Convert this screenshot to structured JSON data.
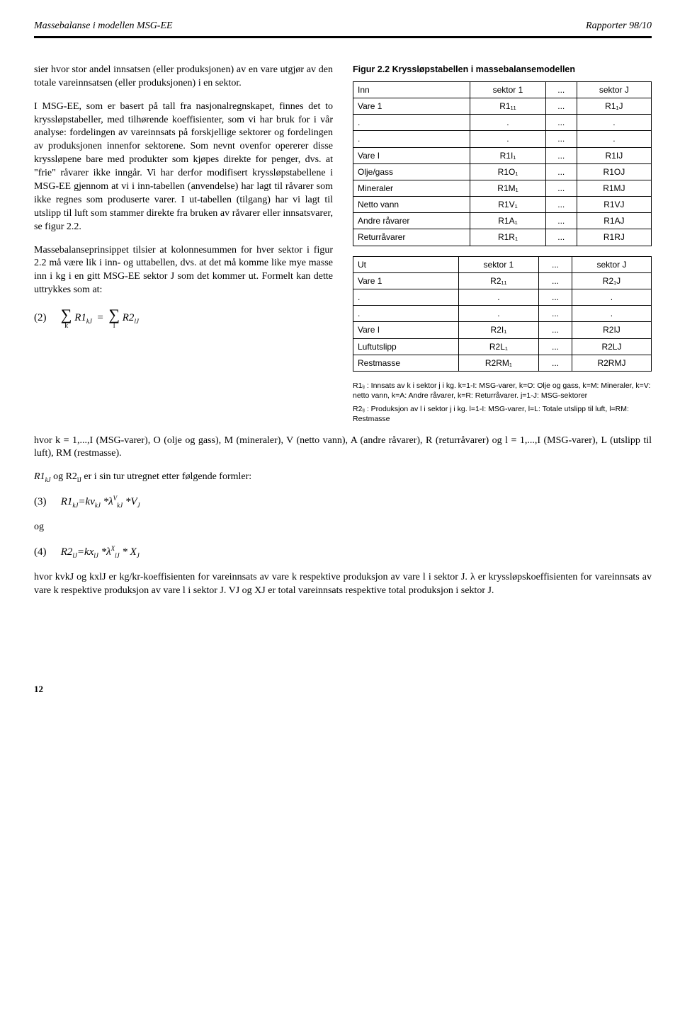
{
  "header": {
    "left": "Massebalanse i modellen MSG-EE",
    "right": "Rapporter 98/10"
  },
  "left": {
    "p1": "sier hvor stor andel innsatsen (eller produksjonen) av en vare utgjør av den totale vareinnsatsen (eller produksjonen) i en sektor.",
    "p2": "I MSG-EE, som er basert på tall fra nasjonalregnskapet, finnes det to kryssløpstabeller, med tilhørende koeffisienter, som vi har bruk for i vår analyse: fordelingen av vareinnsats på forskjellige sektorer og fordelingen av produksjonen innenfor sektorene. Som nevnt ovenfor opererer disse kryssløpene bare med produkter som kjøpes direkte for penger, dvs. at \"frie\" råvarer ikke inngår. Vi har derfor modifisert kryssløpstabellene i MSG-EE gjennom at vi i inn-tabellen (anvendelse) har lagt til råvarer som ikke regnes som produserte varer. I ut-tabellen (tilgang) har vi lagt til utslipp til luft som stammer direkte fra bruken av råvarer eller innsatsvarer, se figur 2.2.",
    "p3": "Massebalanseprinsippet tilsier at kolonnesummen for hver sektor i figur 2.2 må være lik i inn- og uttabellen, dvs. at det må komme like mye masse inn i kg i en gitt MSG-EE sektor J som det kommer ut. Formelt kan dette uttrykkes som at:",
    "eq2": {
      "num": "(2)",
      "lhs_sym": "R1",
      "lhs_sub": "kJ",
      "rhs_sym": "R2",
      "rhs_sub": "lJ",
      "sum_under_left": "k",
      "sum_under_right": "l"
    },
    "p4": "hvor k = 1,...,I (MSG-varer), O (olje og gass), M (mineraler), V (netto vann), A (andre råvarer), R (returråvarer) og l = 1,...,I (MSG-varer), L (utslipp til luft), RM (restmasse).",
    "p5_pre": "R1",
    "p5_sub1": "kJ",
    "p5_mid": " og R2",
    "p5_sub2": "lJ",
    "p5_post": " er i sin tur utregnet etter følgende formler:",
    "eq3": {
      "num": "(3)",
      "text_pre": "R1",
      "sub1": "kJ",
      "eq": "=kv",
      "sub2": "kJ",
      "star1": " *λ",
      "sup": "V",
      "sub3": "kJ",
      "star2": " *V",
      "sub4": "J"
    },
    "og": "og",
    "eq4": {
      "num": "(4)",
      "text_pre": "R2",
      "sub1": "lJ",
      "eq": "=kx",
      "sub2": "lJ",
      "star1": " *λ",
      "sup": "X",
      "sub3": "lJ",
      "star2": " * X",
      "sub4": "J"
    },
    "p6": "hvor kvkJ og kxlJ er kg/kr-koeffisienten for vareinnsats av vare k respektive produksjon av vare l i sektor J. λ er kryssløpskoeffisienten for vareinnsats av vare k respektive produksjon av vare l i sektor J. VJ og XJ er total vareinnsats respektive total produksjon i sektor J."
  },
  "figure": {
    "title": "Figur 2.2 Kryssløpstabellen i massebalansemodellen",
    "table1": {
      "head": [
        "Inn",
        "sektor 1",
        "...",
        "sektor J"
      ],
      "rows": [
        [
          "Vare 1",
          "R1₁₁",
          "...",
          "R1₁J"
        ],
        [
          ".",
          ".",
          "...",
          "."
        ],
        [
          ".",
          ".",
          "...",
          "."
        ],
        [
          "Vare I",
          "R1I₁",
          "...",
          "R1IJ"
        ],
        [
          "Olje/gass",
          "R1O₁",
          "...",
          "R1OJ"
        ],
        [
          "Mineraler",
          "R1M₁",
          "...",
          "R1MJ"
        ],
        [
          "Netto vann",
          "R1V₁",
          "...",
          "R1VJ"
        ],
        [
          "Andre råvarer",
          "R1A₁",
          "...",
          "R1AJ"
        ],
        [
          "Returråvarer",
          "R1R₁",
          "...",
          "R1RJ"
        ]
      ]
    },
    "table2": {
      "head": [
        "Ut",
        "sektor 1",
        "...",
        "sektor J"
      ],
      "rows": [
        [
          "Vare 1",
          "R2₁₁",
          "...",
          "R2₁J"
        ],
        [
          ".",
          ".",
          "...",
          "."
        ],
        [
          ".",
          ".",
          "...",
          "."
        ],
        [
          "Vare I",
          "R2I₁",
          "...",
          "R2IJ"
        ],
        [
          "Luftutslipp",
          "R2L₁",
          "...",
          "R2LJ"
        ],
        [
          "Restmasse",
          "R2RM₁",
          "...",
          "R2RMJ"
        ]
      ]
    },
    "caption1": "R1ᵢⱼ : Innsats av k i sektor j i kg. k=1-I: MSG-varer, k=O: Olje og gass, k=M: Mineraler, k=V: netto vann, k=A: Andre råvarer, k=R: Returråvarer. j=1-J: MSG-sektorer",
    "caption2": "R2ᵢⱼ : Produksjon av l i sektor j i kg. l=1-I: MSG-varer, l=L: Totale utslipp til luft, l=RM: Restmasse"
  },
  "pagenum": "12"
}
